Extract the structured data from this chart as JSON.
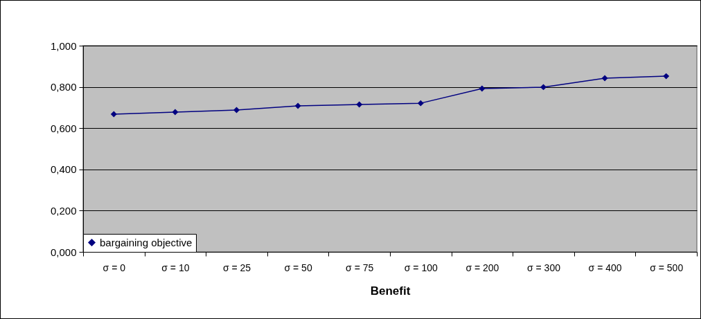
{
  "chart_data": {
    "type": "line",
    "xlabel": "Benefit",
    "categories": [
      "σ = 0",
      "σ = 10",
      "σ = 25",
      "σ = 50",
      "σ = 75",
      "σ = 100",
      "σ = 200",
      "σ = 300",
      "σ = 400",
      "σ = 500"
    ],
    "series": [
      {
        "name": "bargaining objective",
        "color": "#000080",
        "values": [
          0.668,
          0.678,
          0.688,
          0.708,
          0.715,
          0.721,
          0.792,
          0.799,
          0.842,
          0.852
        ]
      }
    ],
    "ylim": [
      0,
      1
    ],
    "yticks": [
      {
        "value": 0,
        "label": "0,000"
      },
      {
        "value": 0.2,
        "label": "0,200"
      },
      {
        "value": 0.4,
        "label": "0,400"
      },
      {
        "value": 0.6,
        "label": "0,600"
      },
      {
        "value": 0.8,
        "label": "0,800"
      },
      {
        "value": 1,
        "label": "1,000"
      }
    ],
    "grid": "y",
    "legend": "bottom left",
    "marker": "diamond",
    "line_style": "solid"
  }
}
